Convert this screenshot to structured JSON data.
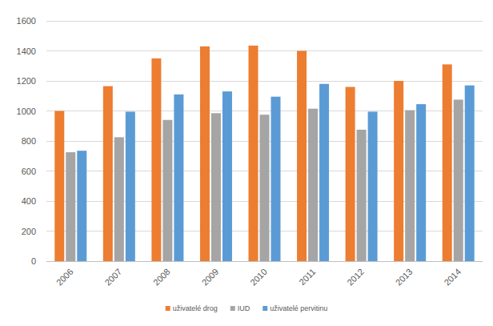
{
  "chart_data": {
    "type": "bar",
    "categories": [
      "2006",
      "2007",
      "2008",
      "2009",
      "2010",
      "2011",
      "2012",
      "2013",
      "2014"
    ],
    "series": [
      {
        "name": "uživatelé drog",
        "color": "#ed7d31",
        "values": [
          1000,
          1165,
          1350,
          1430,
          1435,
          1400,
          1160,
          1200,
          1310
        ]
      },
      {
        "name": "IUD",
        "color": "#a5a5a5",
        "values": [
          725,
          825,
          940,
          985,
          975,
          1015,
          875,
          1005,
          1075
        ]
      },
      {
        "name": "uživatelé pervitinu",
        "color": "#5b9bd5",
        "values": [
          735,
          995,
          1110,
          1130,
          1095,
          1180,
          995,
          1045,
          1170
        ]
      }
    ],
    "ylim": [
      0,
      1600
    ],
    "yticks": [
      0,
      200,
      400,
      600,
      800,
      1000,
      1200,
      1400,
      1600
    ],
    "grid": true,
    "legend": "bottom"
  }
}
